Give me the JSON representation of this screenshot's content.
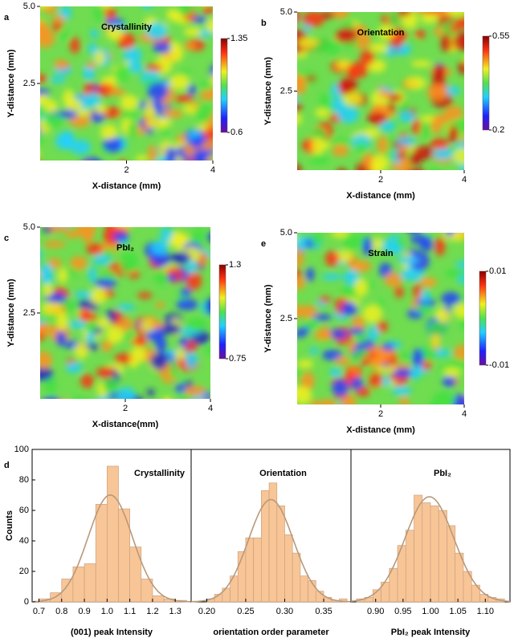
{
  "chart_data": [
    {
      "type": "heatmap",
      "panel": "a",
      "title": "Crystallinity",
      "x_label": "X-distance (mm)",
      "y_label": "Y-distance (mm)",
      "xlim": [
        0,
        4
      ],
      "ylim": [
        0,
        5
      ],
      "xticks": [
        2,
        4
      ],
      "yticks": [
        2.5,
        {
          "value": 5,
          "label": "5.0"
        }
      ],
      "colorbar_ticks": [
        0.6,
        1.35
      ]
    },
    {
      "type": "heatmap",
      "panel": "b",
      "title": "Orientation",
      "x_label": "X-distance (mm)",
      "y_label": "Y-distance (mm)",
      "xlim": [
        0,
        4
      ],
      "ylim": [
        0,
        5
      ],
      "xticks": [
        2,
        4
      ],
      "yticks": [
        2.5,
        {
          "value": 5,
          "label": "5.0"
        }
      ],
      "colorbar_ticks": [
        0.2,
        0.55
      ]
    },
    {
      "type": "heatmap",
      "panel": "c",
      "title": "PbI₂",
      "x_label": "X-distance(mm)",
      "y_label": "Y-distance (mm)",
      "xlim": [
        0,
        4
      ],
      "ylim": [
        0,
        5
      ],
      "xticks": [
        2,
        4
      ],
      "yticks": [
        2.5,
        {
          "value": 5,
          "label": "5.0"
        }
      ],
      "colorbar_ticks": [
        0.75,
        1.3
      ]
    },
    {
      "type": "heatmap",
      "panel": "e",
      "title": "Strain",
      "x_label": "X-distance (mm)",
      "y_label": "Y-distance (mm)",
      "xlim": [
        0,
        4
      ],
      "ylim": [
        0,
        5
      ],
      "xticks": [
        2,
        4
      ],
      "yticks": [
        2.5,
        {
          "value": 5,
          "label": "5.0"
        }
      ],
      "colorbar_ticks": [
        -0.01,
        0.01
      ]
    },
    {
      "type": "histogram",
      "panel": "d",
      "title": "Crystallinity",
      "x_label": "(001)  peak Intensity",
      "y_label": "Counts",
      "color": "#f8c597",
      "bins": [
        0.7,
        0.75,
        0.8,
        0.85,
        0.9,
        0.95,
        1.0,
        1.05,
        1.1,
        1.15,
        1.2,
        1.25,
        1.3,
        1.35
      ],
      "values": [
        2,
        6,
        15,
        23,
        25,
        64,
        89,
        61,
        36,
        15,
        4,
        2,
        1
      ],
      "xlim": [
        0.67,
        1.37
      ],
      "ylim": [
        0,
        100
      ],
      "xticks": [
        0.7,
        0.8,
        0.9,
        {
          "value": 1,
          "label": "1.0"
        },
        1.1,
        1.2,
        1.3
      ],
      "yticks": [
        0,
        20,
        40,
        60,
        80,
        100
      ]
    },
    {
      "type": "histogram",
      "title": "Orientation",
      "x_label": "orientation  order parameter",
      "color": "#f8c597",
      "bins": [
        0.2,
        0.21,
        0.22,
        0.23,
        0.24,
        0.25,
        0.26,
        0.27,
        0.28,
        0.29,
        0.3,
        0.31,
        0.32,
        0.33,
        0.34,
        0.35,
        0.36,
        0.37,
        0.38
      ],
      "values": [
        2,
        5,
        9,
        17,
        33,
        42,
        42,
        73,
        78,
        63,
        44,
        32,
        17,
        14,
        7,
        3,
        1,
        2
      ],
      "xlim": [
        0.18,
        0.385
      ],
      "ylim": [
        0,
        100
      ],
      "xticks": [
        {
          "value": 0.2,
          "label": "0.20"
        },
        0.25,
        {
          "value": 0.3,
          "label": "0.30"
        },
        0.35
      ]
    },
    {
      "type": "histogram",
      "title": "PbI₂",
      "x_label": "PbI₂ peak Intensity",
      "color": "#f8c597",
      "bins": [
        0.865,
        0.88,
        0.895,
        0.91,
        0.925,
        0.94,
        0.955,
        0.97,
        0.985,
        1.0,
        1.015,
        1.03,
        1.045,
        1.06,
        1.075,
        1.09,
        1.105,
        1.12,
        1.135
      ],
      "values": [
        2,
        3,
        8,
        13,
        22,
        37,
        47,
        70,
        65,
        63,
        60,
        50,
        32,
        20,
        11,
        5,
        3,
        2
      ],
      "xlim": [
        0.855,
        1.145
      ],
      "ylim": [
        0,
        100
      ],
      "xticks": [
        {
          "value": 0.9,
          "label": "0.90"
        },
        0.95,
        {
          "value": 1,
          "label": "1.00"
        },
        1.05,
        {
          "value": 1.1,
          "label": "1.10"
        }
      ]
    }
  ]
}
